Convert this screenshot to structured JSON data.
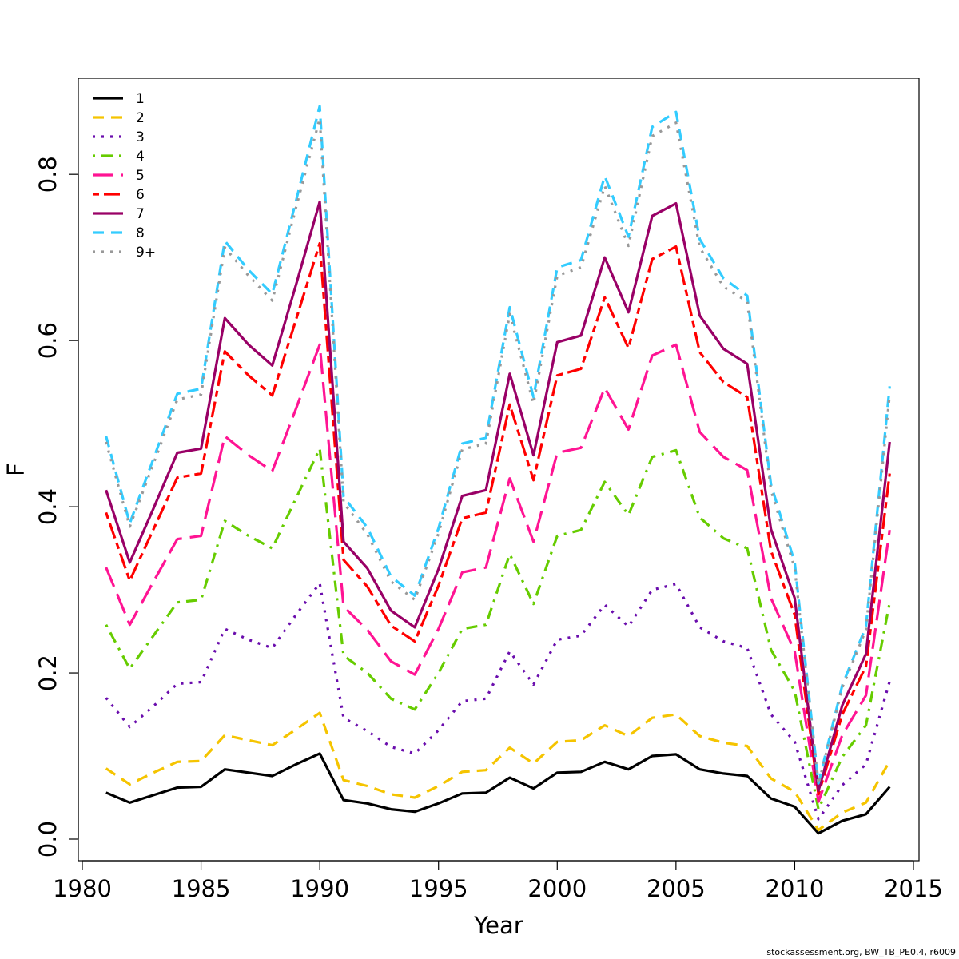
{
  "chart_data": {
    "type": "line",
    "title": "",
    "xlabel": "Year",
    "ylabel": "F",
    "xlim": [
      1980,
      2015
    ],
    "ylim": [
      0.0,
      0.88
    ],
    "x_ticks": [
      1980,
      1985,
      1990,
      1995,
      2000,
      2005,
      2010,
      2015
    ],
    "y_ticks": [
      0.0,
      0.2,
      0.4,
      0.6,
      0.8
    ],
    "x_tick_labels": [
      "1980",
      "1985",
      "1990",
      "1995",
      "2000",
      "2005",
      "2010",
      "2015"
    ],
    "y_tick_labels": [
      "0.0",
      "0.2",
      "0.4",
      "0.6",
      "0.8"
    ],
    "grid": false,
    "legend_position": "top-left",
    "x": [
      1981,
      1982,
      1983,
      1984,
      1985,
      1986,
      1987,
      1988,
      1989,
      1990,
      1991,
      1992,
      1993,
      1994,
      1995,
      1996,
      1997,
      1998,
      1999,
      2000,
      2001,
      2002,
      2003,
      2004,
      2005,
      2006,
      2007,
      2008,
      2009,
      2010,
      2011,
      2012,
      2013,
      2014
    ],
    "series": [
      {
        "name": "1",
        "color": "#000000",
        "dash": "solid",
        "values": [
          0.056,
          0.044,
          0.053,
          0.062,
          0.063,
          0.084,
          0.08,
          0.076,
          0.09,
          0.103,
          0.047,
          0.043,
          0.036,
          0.033,
          0.043,
          0.055,
          0.056,
          0.074,
          0.061,
          0.08,
          0.081,
          0.093,
          0.084,
          0.1,
          0.102,
          0.084,
          0.079,
          0.076,
          0.049,
          0.039,
          0.007,
          0.022,
          0.03,
          0.063
        ]
      },
      {
        "name": "2",
        "color": "#F5C400",
        "dash": "dashed",
        "values": [
          0.085,
          0.066,
          0.08,
          0.093,
          0.094,
          0.125,
          0.119,
          0.113,
          0.132,
          0.152,
          0.071,
          0.064,
          0.054,
          0.05,
          0.064,
          0.081,
          0.083,
          0.11,
          0.091,
          0.117,
          0.119,
          0.137,
          0.124,
          0.146,
          0.15,
          0.124,
          0.116,
          0.112,
          0.073,
          0.057,
          0.011,
          0.032,
          0.044,
          0.094
        ]
      },
      {
        "name": "3",
        "color": "#6A0DAD",
        "dash": "dotted",
        "values": [
          0.17,
          0.135,
          0.16,
          0.187,
          0.189,
          0.253,
          0.24,
          0.23,
          0.27,
          0.308,
          0.146,
          0.13,
          0.111,
          0.103,
          0.131,
          0.166,
          0.169,
          0.226,
          0.186,
          0.24,
          0.245,
          0.282,
          0.256,
          0.3,
          0.307,
          0.255,
          0.238,
          0.23,
          0.15,
          0.117,
          0.024,
          0.065,
          0.09,
          0.19
        ]
      },
      {
        "name": "4",
        "color": "#66CC00",
        "dash": "dotdash",
        "values": [
          0.258,
          0.205,
          0.245,
          0.285,
          0.288,
          0.383,
          0.365,
          0.35,
          0.41,
          0.47,
          0.221,
          0.2,
          0.169,
          0.156,
          0.2,
          0.253,
          0.258,
          0.343,
          0.283,
          0.365,
          0.372,
          0.43,
          0.39,
          0.46,
          0.468,
          0.387,
          0.362,
          0.35,
          0.228,
          0.178,
          0.036,
          0.099,
          0.137,
          0.285
        ]
      },
      {
        "name": "5",
        "color": "#FF1493",
        "dash": "longdash",
        "values": [
          0.327,
          0.258,
          0.31,
          0.361,
          0.365,
          0.485,
          0.462,
          0.443,
          0.518,
          0.595,
          0.28,
          0.252,
          0.214,
          0.198,
          0.253,
          0.321,
          0.327,
          0.434,
          0.358,
          0.465,
          0.471,
          0.543,
          0.493,
          0.582,
          0.595,
          0.49,
          0.46,
          0.444,
          0.29,
          0.226,
          0.045,
          0.125,
          0.173,
          0.372
        ]
      },
      {
        "name": "6",
        "color": "#FF0000",
        "dash": "twodash",
        "values": [
          0.393,
          0.311,
          0.373,
          0.435,
          0.44,
          0.587,
          0.558,
          0.534,
          0.625,
          0.717,
          0.336,
          0.304,
          0.257,
          0.238,
          0.305,
          0.386,
          0.393,
          0.523,
          0.432,
          0.558,
          0.566,
          0.652,
          0.591,
          0.698,
          0.713,
          0.586,
          0.55,
          0.532,
          0.347,
          0.27,
          0.054,
          0.15,
          0.208,
          0.44
        ]
      },
      {
        "name": "7",
        "color": "#990066",
        "dash": "solid",
        "values": [
          0.42,
          0.333,
          0.398,
          0.465,
          0.47,
          0.627,
          0.595,
          0.57,
          0.667,
          0.767,
          0.358,
          0.326,
          0.275,
          0.255,
          0.325,
          0.413,
          0.42,
          0.56,
          0.462,
          0.598,
          0.606,
          0.7,
          0.634,
          0.75,
          0.765,
          0.63,
          0.59,
          0.572,
          0.373,
          0.29,
          0.058,
          0.161,
          0.223,
          0.478
        ]
      },
      {
        "name": "8",
        "color": "#33CCFF",
        "dash": "dashed",
        "values": [
          0.485,
          0.38,
          0.458,
          0.536,
          0.542,
          0.72,
          0.685,
          0.656,
          0.768,
          0.882,
          0.412,
          0.375,
          0.316,
          0.293,
          0.374,
          0.476,
          0.483,
          0.64,
          0.532,
          0.688,
          0.697,
          0.798,
          0.725,
          0.857,
          0.875,
          0.722,
          0.675,
          0.654,
          0.427,
          0.333,
          0.067,
          0.185,
          0.256,
          0.545
        ]
      },
      {
        "name": "9+",
        "color": "#999999",
        "dash": "dotted",
        "values": [
          0.478,
          0.376,
          0.452,
          0.529,
          0.535,
          0.712,
          0.678,
          0.648,
          0.76,
          0.867,
          0.405,
          0.367,
          0.31,
          0.288,
          0.368,
          0.469,
          0.476,
          0.632,
          0.524,
          0.678,
          0.688,
          0.786,
          0.714,
          0.846,
          0.862,
          0.712,
          0.665,
          0.647,
          0.42,
          0.326,
          0.066,
          0.182,
          0.252,
          0.535
        ]
      }
    ]
  },
  "footer": {
    "source_note": "stockassessment.org, BW_TB_PE0.4, r6009"
  }
}
